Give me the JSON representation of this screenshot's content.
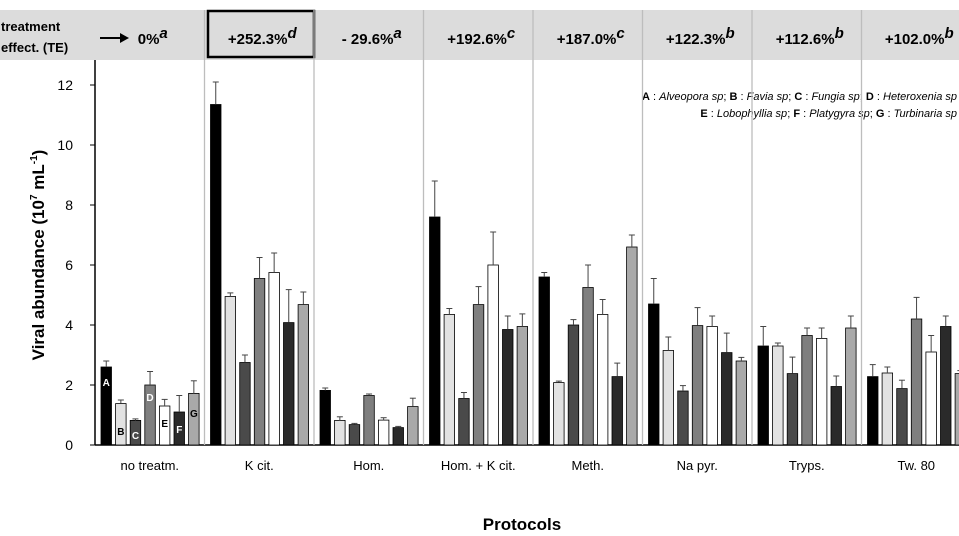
{
  "chart_data": {
    "type": "bar",
    "ylabel": "Viral abundance (10",
    "ylabel_sup": "7",
    "ylabel_end": " mL",
    "ylabel_sup2": "-1",
    "ylabel_close": ")",
    "xlabel": "Protocols",
    "ylim": [
      0,
      12
    ],
    "yticks": [
      "0",
      "2",
      "4",
      "6",
      "8",
      "10",
      "12"
    ],
    "te_header": {
      "line1": "treatment",
      "line2": "effect. (TE)"
    },
    "categories": [
      "no treatm.",
      "K cit.",
      "Hom.",
      "Hom. + K cit.",
      "Meth.",
      "Na pyr.",
      "Tryps.",
      "Tw. 80"
    ],
    "te_values": [
      "0%",
      "+252.3%",
      "- 29.6%",
      "+192.6%",
      "+187.0%",
      "+122.3%",
      "+112.6%",
      "+102.0%"
    ],
    "te_letters": [
      "a",
      "d",
      "a",
      "c",
      "c",
      "b",
      "b",
      "b"
    ],
    "highlight_category": "K cit.",
    "species_legend": {
      "line1": [
        {
          "key": "A",
          "name": "Alveopora sp"
        },
        {
          "key": "B",
          "name": "Favia sp"
        },
        {
          "key": "C",
          "name": "Fungia sp"
        },
        {
          "key": "D",
          "name": "Heteroxenia sp"
        }
      ],
      "line2": [
        {
          "key": "E",
          "name": "Lobophyllia sp"
        },
        {
          "key": "F",
          "name": "Platygyra sp"
        },
        {
          "key": "G",
          "name": "Turbinaria sp"
        }
      ]
    },
    "series": [
      {
        "key": "A",
        "color": "#000000",
        "values": [
          2.6,
          11.35,
          1.82,
          7.6,
          5.6,
          4.7,
          3.3,
          2.28
        ],
        "errors": [
          0.2,
          0.75,
          0.08,
          1.2,
          0.15,
          0.85,
          0.65,
          0.4
        ]
      },
      {
        "key": "B",
        "color": "#e2e2e2",
        "values": [
          1.38,
          4.95,
          0.82,
          4.35,
          2.08,
          3.15,
          3.3,
          2.4
        ],
        "errors": [
          0.12,
          0.12,
          0.12,
          0.2,
          0.05,
          0.45,
          0.1,
          0.2
        ]
      },
      {
        "key": "C",
        "color": "#4a4a4a",
        "values": [
          0.82,
          2.75,
          0.68,
          1.55,
          4.0,
          1.8,
          2.38,
          1.88
        ],
        "errors": [
          0.05,
          0.25,
          0.04,
          0.2,
          0.18,
          0.18,
          0.55,
          0.28
        ]
      },
      {
        "key": "D",
        "color": "#7f7f7f",
        "values": [
          2.0,
          5.55,
          1.65,
          4.68,
          5.25,
          3.98,
          3.65,
          4.2
        ],
        "errors": [
          0.45,
          0.7,
          0.05,
          0.6,
          0.75,
          0.6,
          0.25,
          0.72
        ]
      },
      {
        "key": "E",
        "color": "#ffffff",
        "values": [
          1.3,
          5.75,
          0.83,
          6.0,
          4.35,
          3.95,
          3.55,
          3.1
        ],
        "errors": [
          0.22,
          0.65,
          0.08,
          1.1,
          0.5,
          0.35,
          0.35,
          0.55
        ]
      },
      {
        "key": "F",
        "color": "#2a2a2a",
        "values": [
          1.1,
          4.08,
          0.58,
          3.85,
          2.28,
          3.08,
          1.95,
          3.95
        ],
        "errors": [
          0.55,
          1.1,
          0.04,
          0.45,
          0.45,
          0.65,
          0.35,
          0.35
        ]
      },
      {
        "key": "G",
        "color": "#a9a9a9",
        "values": [
          1.72,
          4.68,
          1.28,
          3.95,
          6.6,
          2.8,
          3.9,
          2.38
        ],
        "errors": [
          0.42,
          0.42,
          0.28,
          0.42,
          0.4,
          0.12,
          0.4,
          0.1
        ]
      }
    ],
    "bar_labels": [
      "A",
      "B",
      "C",
      "D",
      "E",
      "F",
      "G"
    ]
  }
}
